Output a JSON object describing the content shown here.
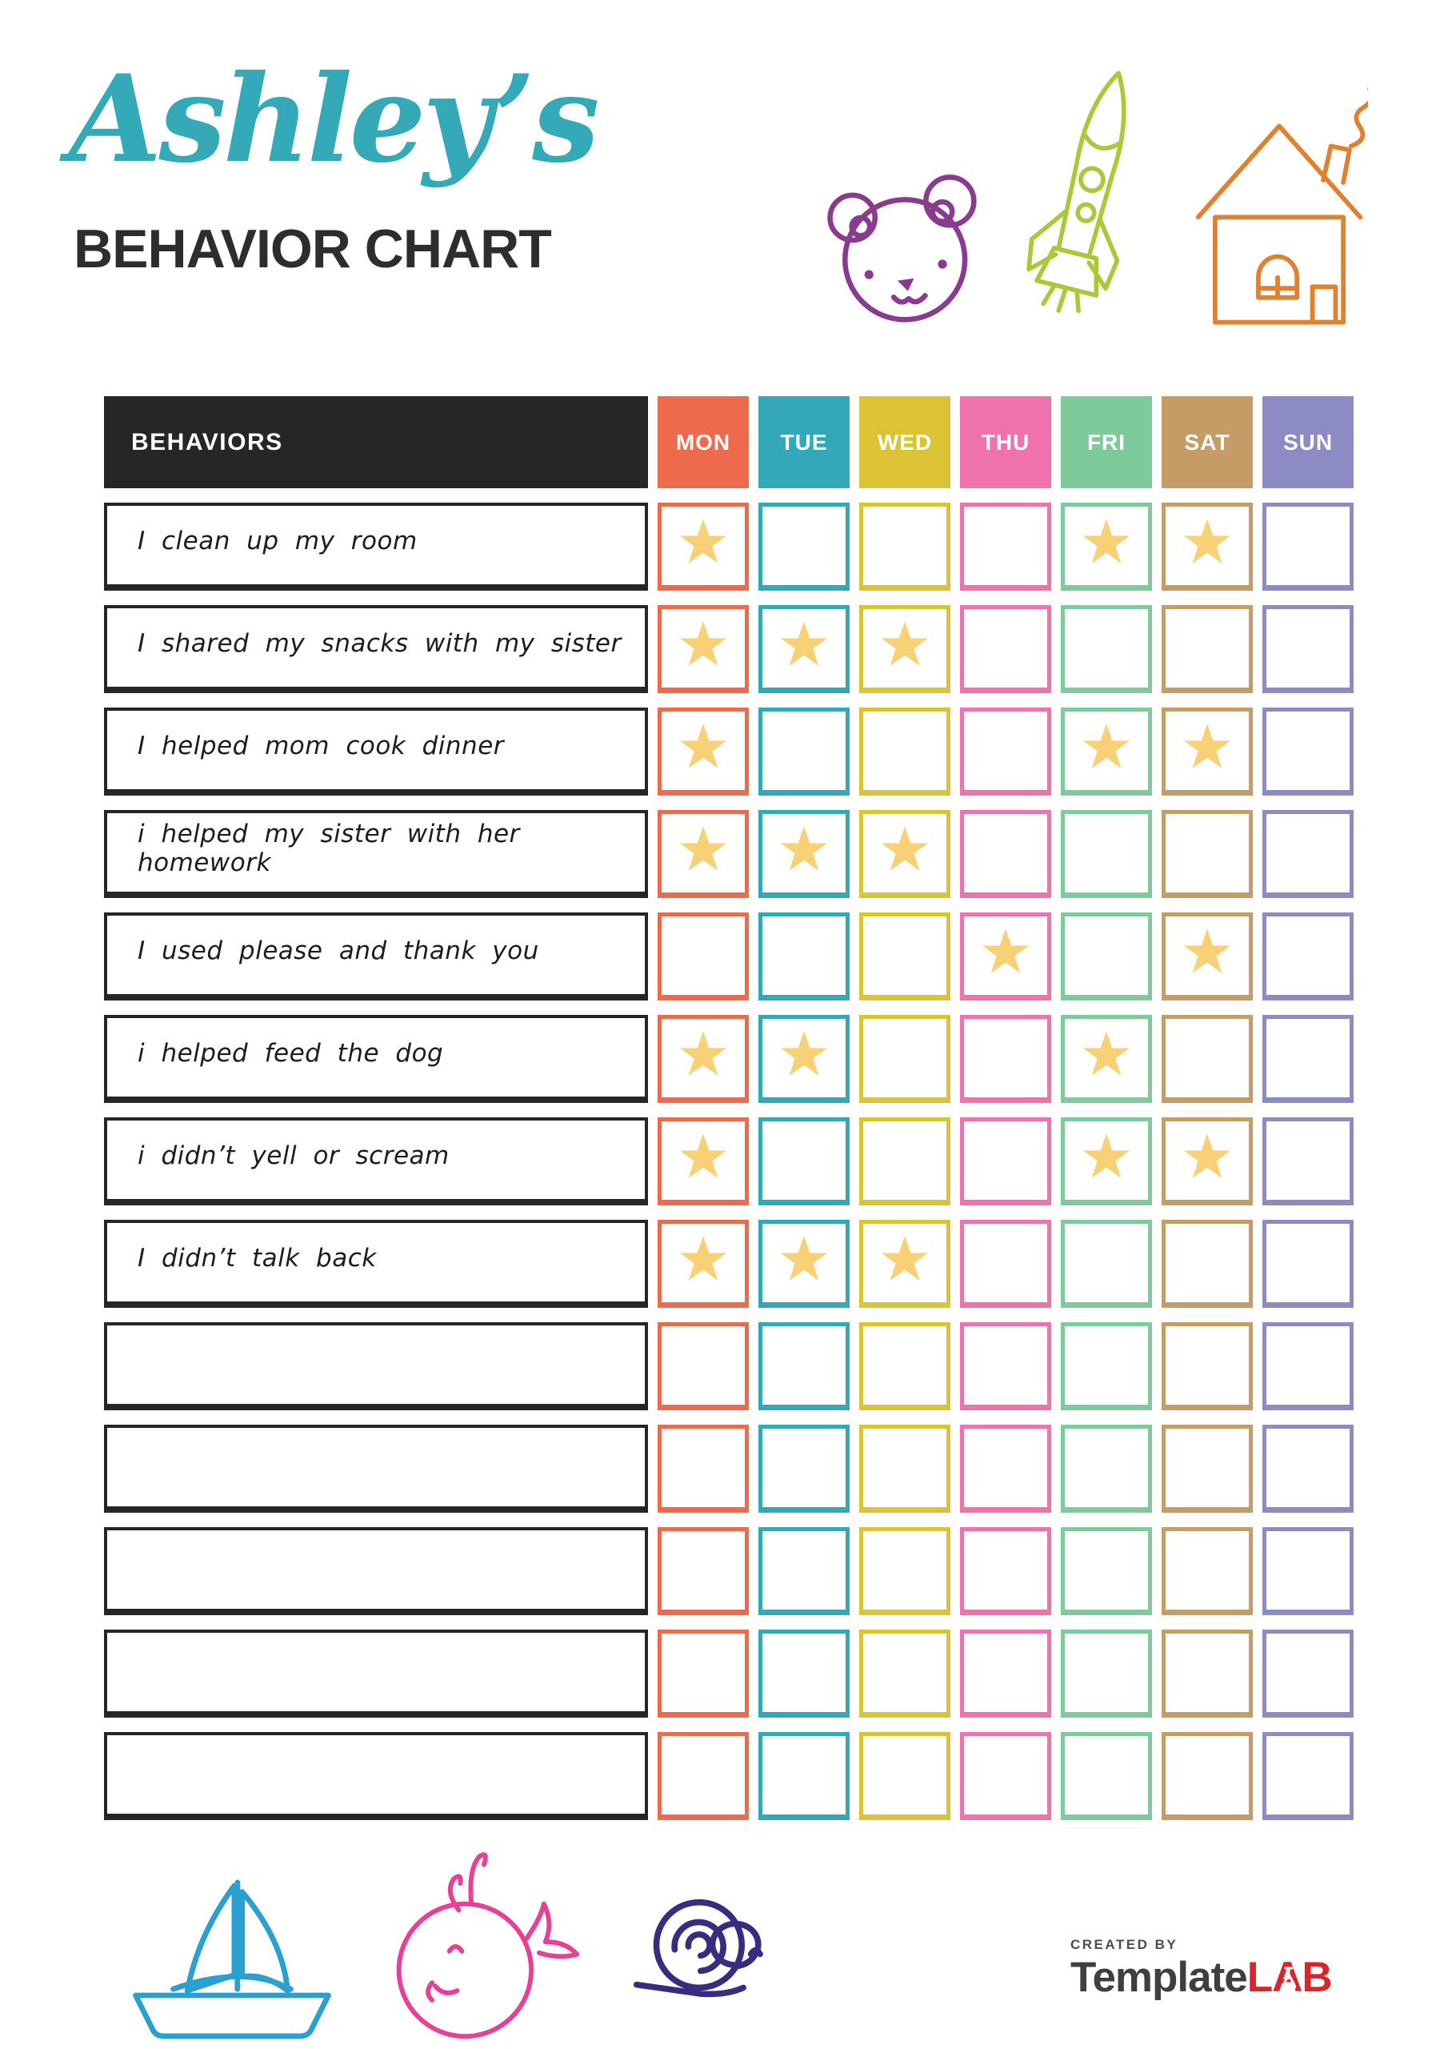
{
  "page": {
    "title_script": "Ashley’s",
    "title_main": "BEHAVIOR CHART"
  },
  "table": {
    "behaviors_header": "BEHAVIORS",
    "days": [
      {
        "label": "MON",
        "color": "#ed6a4d"
      },
      {
        "label": "TUE",
        "color": "#33a8b8"
      },
      {
        "label": "WED",
        "color": "#dcc334"
      },
      {
        "label": "THU",
        "color": "#ef72ad"
      },
      {
        "label": "FRI",
        "color": "#7fca9b"
      },
      {
        "label": "SAT",
        "color": "#c59c65"
      },
      {
        "label": "SUN",
        "color": "#8c8bc3"
      }
    ],
    "star_color": "#f8d176",
    "header_bg": "#262626",
    "rows": [
      {
        "behavior": "I clean up my room",
        "stars": [
          "MON",
          "FRI",
          "SAT"
        ]
      },
      {
        "behavior": "I shared my snacks with my sister",
        "stars": [
          "MON",
          "TUE",
          "WED"
        ]
      },
      {
        "behavior": "I helped mom cook dinner",
        "stars": [
          "MON",
          "FRI",
          "SAT"
        ]
      },
      {
        "behavior": "i helped my sister with her homework",
        "stars": [
          "MON",
          "TUE",
          "WED"
        ]
      },
      {
        "behavior": "I used please and thank you",
        "stars": [
          "THU",
          "SAT"
        ]
      },
      {
        "behavior": "i helped feed the dog",
        "stars": [
          "MON",
          "TUE",
          "FRI"
        ]
      },
      {
        "behavior": "i didn’t yell or scream",
        "stars": [
          "MON",
          "FRI",
          "SAT"
        ]
      },
      {
        "behavior": "I didn’t talk back",
        "stars": [
          "MON",
          "TUE",
          "WED"
        ]
      },
      {
        "behavior": "",
        "stars": []
      },
      {
        "behavior": "",
        "stars": []
      },
      {
        "behavior": "",
        "stars": []
      },
      {
        "behavior": "",
        "stars": []
      },
      {
        "behavior": "",
        "stars": []
      }
    ]
  },
  "decorations": {
    "top": [
      {
        "icon": "teddy-bear-icon",
        "color": "#8a3b8f"
      },
      {
        "icon": "rocket-icon",
        "color": "#a9c938"
      },
      {
        "icon": "house-icon",
        "color": "#e0812f"
      }
    ],
    "bottom": [
      {
        "icon": "sailboat-icon",
        "color": "#2aa0d0"
      },
      {
        "icon": "whale-icon",
        "color": "#e83f97"
      },
      {
        "icon": "snail-icon",
        "color": "#362d80"
      }
    ]
  },
  "footer": {
    "created_by": "CREATED BY",
    "brand_template": "Template",
    "brand_lab": "LAB"
  }
}
